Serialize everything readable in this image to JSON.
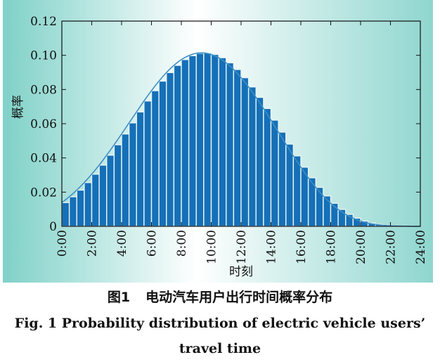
{
  "caption": {
    "cn_number": "图1",
    "cn_title": "电动汽车用户出行时间概率分布",
    "en_line1": "Fig. 1    Probability distribution of electric vehicle users’",
    "en_line2": "travel time"
  },
  "chart_data": {
    "type": "bar",
    "xlabel": "时刻",
    "ylabel": "概率",
    "xlim": [
      0,
      24
    ],
    "ylim": [
      0,
      0.12
    ],
    "x_ticks": [
      "0:00",
      "2:00",
      "4:00",
      "6:00",
      "8:00",
      "10:00",
      "12:00",
      "14:00",
      "16:00",
      "18:00",
      "20:00",
      "22:00",
      "24:00"
    ],
    "y_ticks": [
      "0",
      "0.02",
      "0.04",
      "0.06",
      "0.08",
      "0.10",
      "0.12"
    ],
    "bar_width_hours": 0.5,
    "x": [
      0,
      0.5,
      1,
      1.5,
      2,
      2.5,
      3,
      3.5,
      4,
      4.5,
      5,
      5.5,
      6,
      6.5,
      7,
      7.5,
      8,
      8.5,
      9,
      9.5,
      10,
      10.5,
      11,
      11.5,
      12,
      12.5,
      13,
      13.5,
      14,
      14.5,
      15,
      15.5,
      16,
      16.5,
      17,
      17.5,
      18,
      18.5,
      19,
      19.5,
      20,
      20.5,
      21,
      21.5,
      22,
      22.5,
      23,
      23.5
    ],
    "values": [
      0.0139,
      0.0173,
      0.0212,
      0.0256,
      0.0305,
      0.0358,
      0.0416,
      0.0477,
      0.054,
      0.0605,
      0.0669,
      0.0733,
      0.0793,
      0.0849,
      0.0899,
      0.0941,
      0.0975,
      0.0998,
      0.1012,
      0.1014,
      0.1005,
      0.0986,
      0.0956,
      0.0917,
      0.0869,
      0.0815,
      0.0754,
      0.0689,
      0.0621,
      0.0551,
      0.0481,
      0.0412,
      0.0346,
      0.0284,
      0.0228,
      0.0178,
      0.0135,
      0.0099,
      0.007,
      0.0048,
      0.0031,
      0.0019,
      0.0011,
      0.0006,
      0.0003,
      0.0002,
      0.0001,
      0.0
    ],
    "curve_x": [
      0,
      0.5,
      1,
      1.5,
      2,
      2.5,
      3,
      3.5,
      4,
      4.5,
      5,
      5.5,
      6,
      6.5,
      7,
      7.5,
      8,
      8.5,
      9,
      9.5,
      10,
      10.5,
      11,
      11.5,
      12,
      12.5,
      13,
      13.5,
      14,
      14.5,
      15,
      15.5,
      16,
      16.5,
      17,
      17.5,
      18,
      18.5,
      19,
      19.5,
      20,
      20.5,
      21,
      21.5,
      22,
      22.5,
      23,
      23.5,
      24
    ],
    "curve_y": [
      0.0139,
      0.0173,
      0.0212,
      0.0256,
      0.0305,
      0.0358,
      0.0416,
      0.0477,
      0.054,
      0.0605,
      0.0669,
      0.0733,
      0.0793,
      0.0849,
      0.0899,
      0.0941,
      0.0975,
      0.0998,
      0.1012,
      0.1014,
      0.1005,
      0.0986,
      0.0956,
      0.0917,
      0.0869,
      0.0815,
      0.0754,
      0.0689,
      0.0621,
      0.0551,
      0.0481,
      0.0412,
      0.0346,
      0.0284,
      0.0228,
      0.0178,
      0.0135,
      0.0099,
      0.007,
      0.0048,
      0.0031,
      0.0019,
      0.0011,
      0.0006,
      0.0003,
      0.0002,
      0.0001,
      0.0,
      0.0
    ],
    "colors": {
      "bar": "#1570b8",
      "bar_edge": "#e8f6f4",
      "curve": "#3f8fc4",
      "bg_left": "#7fd1c8",
      "bg_mid": "#ffffff",
      "bg_right": "#8fd6cf"
    }
  }
}
